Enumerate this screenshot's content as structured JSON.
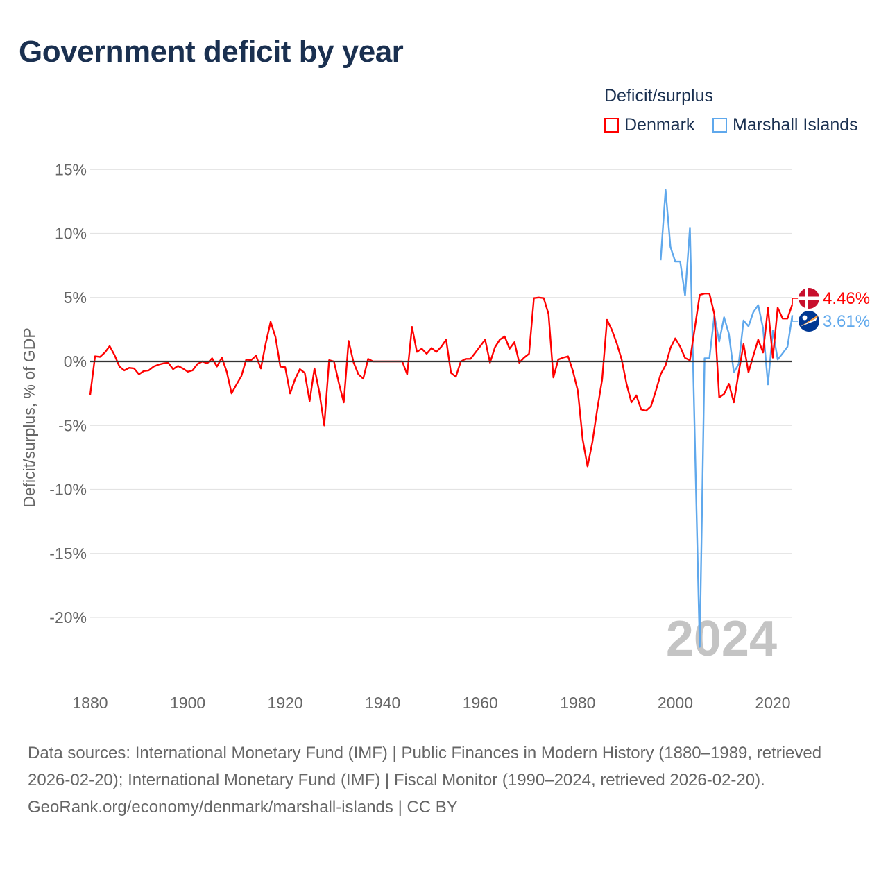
{
  "title": "Government deficit by year",
  "chart_data": {
    "type": "line",
    "title": "Government deficit by year",
    "xlabel": "",
    "ylabel": "Deficit/surplus, % of GDP",
    "legend_title": "Deficit/surplus",
    "legend_position": "top-right",
    "xlim": [
      1880,
      2024
    ],
    "ylim": [
      -24,
      16
    ],
    "x_ticks": [
      1880,
      1900,
      1920,
      1940,
      1960,
      1980,
      2000,
      2020
    ],
    "x_tick_labels": [
      "1880",
      "1900",
      "1920",
      "1940",
      "1960",
      "1980",
      "2000",
      "2020"
    ],
    "y_ticks": [
      15,
      10,
      5,
      0,
      -5,
      -10,
      -15,
      -20
    ],
    "y_tick_labels": [
      "15%",
      "10%",
      "5%",
      "0%",
      "-5%",
      "-10%",
      "-15%",
      "-20%"
    ],
    "grid": true,
    "year_watermark": "2024",
    "series": [
      {
        "name": "Denmark",
        "color": "#ff0000",
        "end_label": "4.46%",
        "flag": "denmark-flag",
        "start_year": 1880,
        "values": [
          -2.6,
          0.4,
          0.35,
          0.7,
          1.2,
          0.5,
          -0.4,
          -0.7,
          -0.5,
          -0.55,
          -1.0,
          -0.75,
          -0.7,
          -0.4,
          -0.25,
          -0.15,
          -0.1,
          -0.6,
          -0.35,
          -0.55,
          -0.8,
          -0.7,
          -0.2,
          0,
          -0.15,
          0.25,
          -0.4,
          0.3,
          -0.8,
          -2.5,
          -1.8,
          -1.15,
          0.15,
          0.1,
          0.45,
          -0.55,
          1.4,
          3.1,
          1.9,
          -0.4,
          -0.45,
          -2.5,
          -1.4,
          -0.6,
          -0.9,
          -3.1,
          -0.55,
          -2.4,
          -5.0,
          0.1,
          0,
          -1.7,
          -3.2,
          1.6,
          -0.05,
          -1.0,
          -1.35,
          0.2,
          0,
          0,
          0,
          0,
          0,
          0,
          0,
          -1.0,
          2.7,
          0.75,
          1.0,
          0.6,
          1.05,
          0.75,
          1.15,
          1.7,
          -0.9,
          -1.2,
          0,
          0.2,
          0.2,
          0.7,
          1.2,
          1.7,
          -0.1,
          1.1,
          1.7,
          1.95,
          1.0,
          1.5,
          -0.1,
          0.3,
          0.6,
          4.95,
          5.0,
          4.95,
          3.7,
          -1.25,
          0.15,
          0.3,
          0.4,
          -0.75,
          -2.3,
          -6.1,
          -8.2,
          -6.3,
          -3.7,
          -1.4,
          3.25,
          2.45,
          1.4,
          0.15,
          -1.75,
          -3.2,
          -2.65,
          -3.75,
          -3.85,
          -3.5,
          -2.3,
          -1.0,
          -0.3,
          1.05,
          1.8,
          1.15,
          0.27,
          0.09,
          2.6,
          5.2,
          5.3,
          5.3,
          3.7,
          -2.8,
          -2.55,
          -1.75,
          -3.2,
          -0.85,
          1.35,
          -0.85,
          0.45,
          1.7,
          0.7,
          4.2,
          0.3,
          4.2,
          3.35,
          3.35,
          4.46
        ]
      },
      {
        "name": "Marshall Islands",
        "color": "#5fa8ec",
        "end_label": "3.61%",
        "flag": "marshall-islands-flag",
        "start_year": 1997,
        "values": [
          7.9,
          13.4,
          8.95,
          7.8,
          7.8,
          5.15,
          10.45,
          -5.9,
          -22.3,
          0.25,
          0.25,
          3.6,
          1.55,
          3.45,
          2.15,
          -0.85,
          -0.2,
          3.2,
          2.75,
          3.85,
          4.4,
          2.6,
          -1.8,
          2.4,
          0.15,
          0.63,
          1.15,
          3.61
        ]
      }
    ]
  },
  "footer": {
    "sources": "Data sources: International Monetary Fund (IMF) | Public Finances in Modern History (1880–1989, retrieved 2026-02-20); International Monetary Fund (IMF) | Fiscal Monitor (1990–2024, retrieved 2026-02-20).",
    "credit": "GeoRank.org/economy/denmark/marshall-islands | CC BY"
  }
}
